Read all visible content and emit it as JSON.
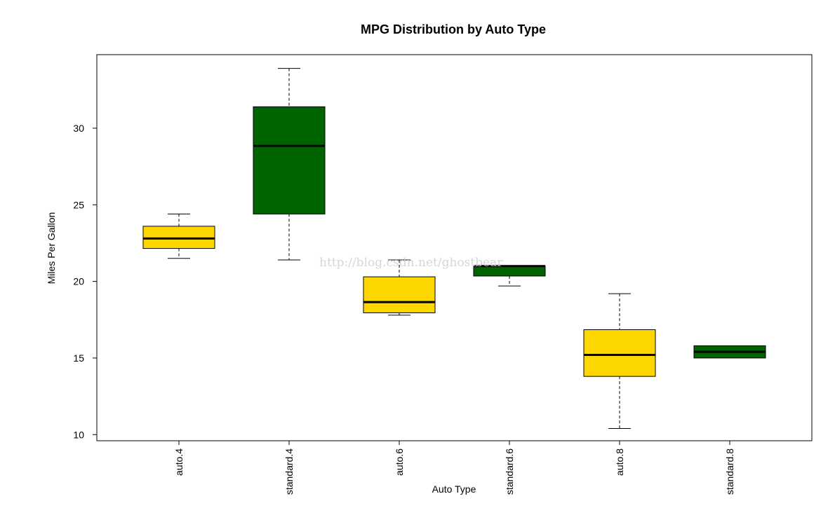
{
  "chart_data": {
    "type": "boxplot",
    "title": "MPG Distribution by Auto Type",
    "xlabel": "Auto Type",
    "ylabel": "Miles Per Gallon",
    "ylim": [
      9.6,
      34.8
    ],
    "yticks": [
      10,
      15,
      20,
      25,
      30
    ],
    "grid": false,
    "colors": {
      "auto": "#FFD700",
      "standard": "#006400"
    },
    "categories": [
      "auto.4",
      "standard.4",
      "auto.6",
      "standard.6",
      "auto.8",
      "standard.8"
    ],
    "boxes": [
      {
        "label": "auto.4",
        "min": 21.5,
        "q1": 22.15,
        "median": 22.8,
        "q3": 23.6,
        "max": 24.4,
        "color": "#FFD700"
      },
      {
        "label": "standard.4",
        "min": 21.4,
        "q1": 24.4,
        "median": 28.85,
        "q3": 31.4,
        "max": 33.9,
        "color": "#006400"
      },
      {
        "label": "auto.6",
        "min": 17.8,
        "q1": 17.95,
        "median": 18.65,
        "q3": 20.3,
        "max": 21.4,
        "color": "#FFD700"
      },
      {
        "label": "standard.6",
        "min": 19.7,
        "q1": 20.35,
        "median": 21.0,
        "q3": 21.0,
        "max": 21.0,
        "color": "#006400"
      },
      {
        "label": "auto.8",
        "min": 10.4,
        "q1": 13.8,
        "median": 15.2,
        "q3": 16.85,
        "max": 19.2,
        "color": "#FFD700"
      },
      {
        "label": "standard.8",
        "min": 15.0,
        "q1": 15.0,
        "median": 15.4,
        "q3": 15.8,
        "max": 15.8,
        "color": "#006400"
      }
    ],
    "watermark": "http://blog.csdn.net/ghostbear"
  }
}
